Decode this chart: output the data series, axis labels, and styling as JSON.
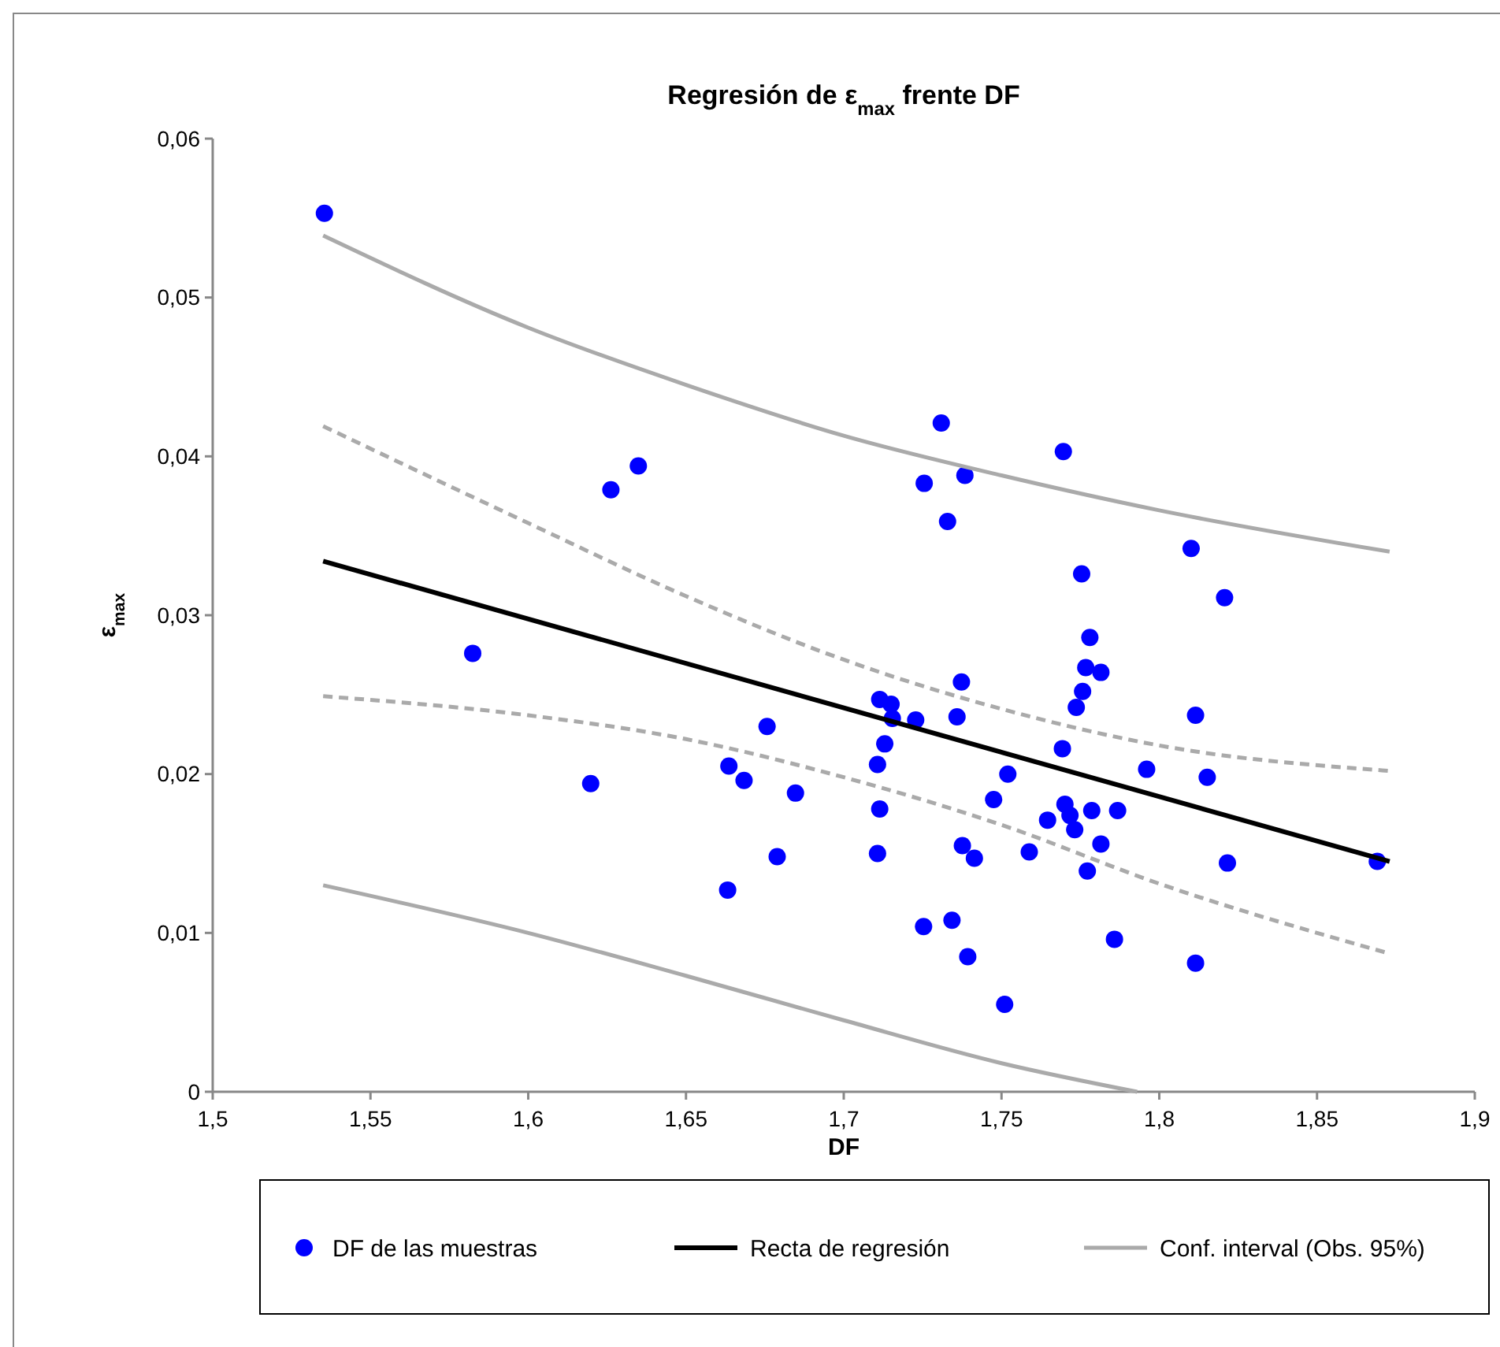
{
  "chart_data": {
    "type": "scatter",
    "title": "Regresión de ε$_{max}$ frente  DF",
    "xlabel": "DF",
    "ylabel": "ε$_{max}$",
    "xlim": [
      1.5,
      1.9
    ],
    "xticks": [
      {
        "value": 1.5,
        "label": "1,5"
      },
      {
        "value": 1.55,
        "label": "1,55"
      },
      {
        "value": 1.6,
        "label": "1,6"
      },
      {
        "value": 1.65,
        "label": "1,65"
      },
      {
        "value": 1.7,
        "label": "1,7"
      },
      {
        "value": 1.75,
        "label": "1,75"
      },
      {
        "value": 1.8,
        "label": "1,8"
      },
      {
        "value": 1.85,
        "label": "1,85"
      },
      {
        "value": 1.9,
        "label": "1,9"
      }
    ],
    "ylim": [
      0,
      0.06
    ],
    "yticks": [
      {
        "value": 0,
        "label": "0"
      },
      {
        "value": 0.01,
        "label": "0,01"
      },
      {
        "value": 0.02,
        "label": "0,02"
      },
      {
        "value": 0.03,
        "label": "0,03"
      },
      {
        "value": 0.04,
        "label": "0,04"
      },
      {
        "value": 0.05,
        "label": "0,05"
      },
      {
        "value": 0.06,
        "label": "0,06"
      }
    ],
    "grid": false,
    "legend": "bottom",
    "series": [
      {
        "name": "DF de las muestras",
        "marker": "circle",
        "color": "#0000ff",
        "x": [
          1.5354,
          1.5824,
          1.6262,
          1.6349,
          1.6198,
          1.6757,
          1.6636,
          1.6684,
          1.6847,
          1.6789,
          1.6632,
          1.7309,
          1.7696,
          1.7255,
          1.7384,
          1.7329,
          1.8101,
          1.7754,
          1.8207,
          1.778,
          1.7767,
          1.7815,
          1.7757,
          1.7737,
          1.7373,
          1.8115,
          1.7114,
          1.715,
          1.7154,
          1.7228,
          1.7359,
          1.713,
          1.7107,
          1.7693,
          1.796,
          1.8152,
          1.752,
          1.7475,
          1.7114,
          1.7701,
          1.7717,
          1.7786,
          1.7868,
          1.7646,
          1.7732,
          1.7815,
          1.7107,
          1.7376,
          1.7414,
          1.7588,
          1.7772,
          1.8216,
          1.8691,
          1.7253,
          1.7343,
          1.7393,
          1.7858,
          1.8115,
          1.751
        ],
        "values": [
          0.0553,
          0.0276,
          0.0379,
          0.0394,
          0.0194,
          0.023,
          0.0205,
          0.0196,
          0.0188,
          0.0148,
          0.0127,
          0.0421,
          0.0403,
          0.0383,
          0.0388,
          0.0359,
          0.0342,
          0.0326,
          0.0311,
          0.0286,
          0.0267,
          0.0264,
          0.0252,
          0.0242,
          0.0258,
          0.0237,
          0.0247,
          0.0244,
          0.0235,
          0.0234,
          0.0236,
          0.0219,
          0.0206,
          0.0216,
          0.0203,
          0.0198,
          0.02,
          0.0184,
          0.0178,
          0.0181,
          0.0174,
          0.0177,
          0.0177,
          0.0171,
          0.0165,
          0.0156,
          0.015,
          0.0155,
          0.0147,
          0.0151,
          0.0139,
          0.0144,
          0.0145,
          0.0104,
          0.0108,
          0.0085,
          0.0096,
          0.0081,
          0.0055
        ]
      },
      {
        "name": "Recta de regresión",
        "type": "line",
        "line_style": "solid",
        "color": "#000000",
        "x": [
          1.535,
          1.873
        ],
        "values": [
          0.0334,
          0.0145
        ]
      },
      {
        "name": "Conf. interval (Obs. 95%)",
        "type": "line",
        "line_style": "solid",
        "color": "#aaaaaa",
        "x": [
          1.535,
          1.6,
          1.65,
          1.7,
          1.75,
          1.8,
          1.873
        ],
        "values": [
          0.0539,
          0.0481,
          0.0445,
          0.0413,
          0.0388,
          0.0366,
          0.034
        ]
      },
      {
        "type": "line",
        "line_style": "solid",
        "color": "#aaaaaa",
        "x": [
          1.535,
          1.6,
          1.65,
          1.7,
          1.75,
          1.793
        ],
        "values": [
          0.013,
          0.01,
          0.0073,
          0.0045,
          0.0018,
          0
        ]
      },
      {
        "type": "line",
        "line_style": "dashed",
        "color": "#aaaaaa",
        "x": [
          1.535,
          1.6,
          1.65,
          1.7,
          1.75,
          1.8,
          1.873
        ],
        "values": [
          0.0419,
          0.0358,
          0.0312,
          0.0272,
          0.0241,
          0.0218,
          0.0202
        ]
      },
      {
        "type": "line",
        "line_style": "dashed",
        "color": "#aaaaaa",
        "x": [
          1.535,
          1.6,
          1.65,
          1.7,
          1.75,
          1.8,
          1.873
        ],
        "values": [
          0.0249,
          0.0237,
          0.0222,
          0.0198,
          0.0168,
          0.0131,
          0.0087
        ]
      }
    ]
  }
}
